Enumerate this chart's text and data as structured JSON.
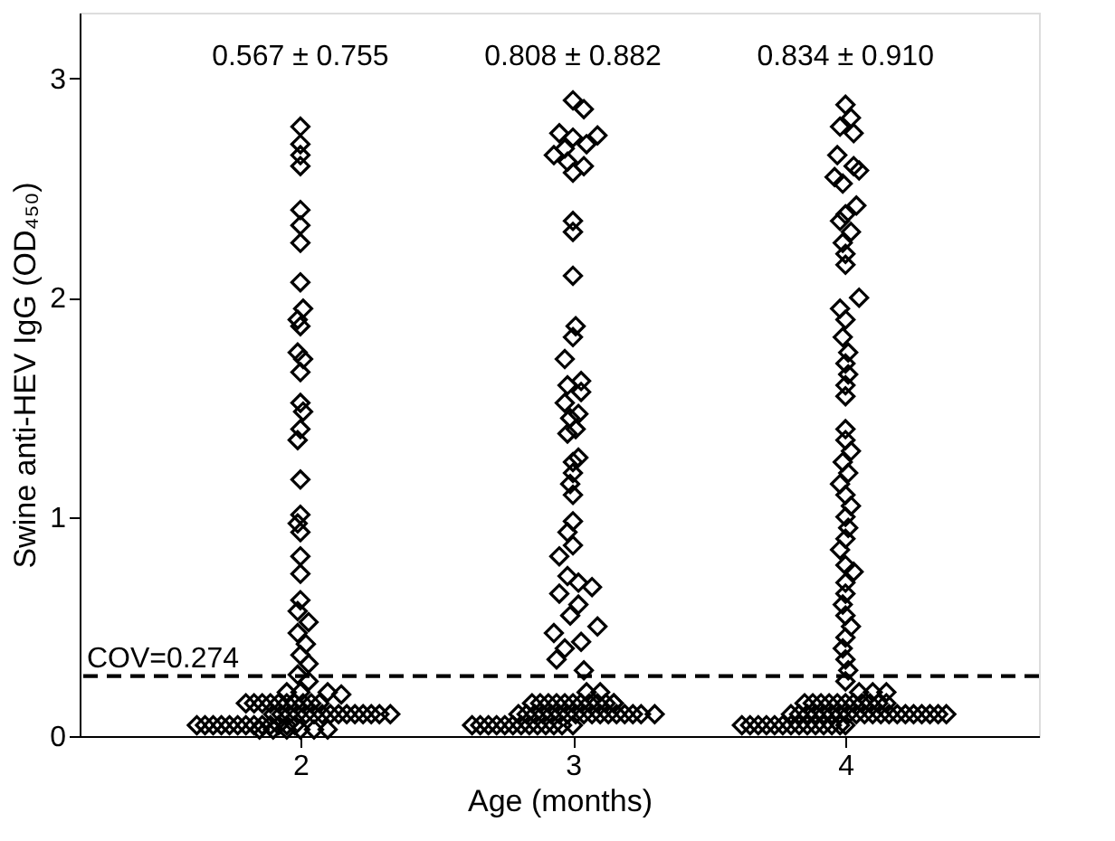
{
  "chart_data": {
    "type": "scatter",
    "xlabel": "Age (months)",
    "ylabel": "Swine anti-HEV IgG (OD₄₅₀)",
    "xlim": [
      1.19,
      4.71
    ],
    "xticks": [
      2,
      3,
      4
    ],
    "ylim": [
      0,
      3.3
    ],
    "yticks": [
      0,
      1,
      2,
      3
    ],
    "grid": false,
    "marker": "diamond",
    "annotations": [
      "0.567 ± 0.755",
      "0.808 ± 0.882",
      "0.834 ± 0.910"
    ],
    "ref_lines": [
      {
        "axis": "y",
        "value": 0.274,
        "label": "COV=0.274",
        "color": "#000000",
        "line_style": "dashed"
      }
    ],
    "series": [
      {
        "color": "#000000",
        "x": [
          2.0,
          2.0,
          2.0,
          2.0,
          2.0,
          2.0,
          2.0,
          2.0,
          2.01,
          1.99,
          2.0,
          1.99,
          2.01,
          2.0,
          2.0,
          2.01,
          2.0,
          1.99,
          2.0,
          2.0,
          1.99,
          2.0,
          2.0,
          2.0,
          2.0,
          1.99,
          2.03,
          1.99,
          2.02,
          2.0,
          2.03,
          1.99,
          2.03,
          2.1,
          2.15,
          1.62,
          1.65,
          1.68,
          1.71,
          1.74,
          1.77,
          1.8,
          1.83,
          1.86,
          1.89,
          1.92,
          1.95,
          1.98,
          1.9,
          1.93,
          1.96,
          1.99,
          2.02,
          2.05,
          2.08,
          2.11,
          2.14,
          2.17,
          2.2,
          2.23,
          2.26,
          2.29,
          2.33,
          1.8,
          1.83,
          1.86,
          1.89,
          1.92,
          1.95,
          1.98,
          2.01,
          2.04,
          2.07,
          1.85,
          1.9,
          1.95,
          2.0,
          2.05,
          2.1,
          1.95,
          2.0
        ],
        "values": [
          2.78,
          2.7,
          2.65,
          2.6,
          2.4,
          2.33,
          2.25,
          2.07,
          1.95,
          1.9,
          1.87,
          1.75,
          1.72,
          1.66,
          1.52,
          1.48,
          1.4,
          1.35,
          1.17,
          1.01,
          0.97,
          0.93,
          0.82,
          0.74,
          0.62,
          0.57,
          0.52,
          0.47,
          0.42,
          0.37,
          0.33,
          0.28,
          0.25,
          0.2,
          0.19,
          0.05,
          0.05,
          0.05,
          0.05,
          0.05,
          0.05,
          0.05,
          0.05,
          0.05,
          0.05,
          0.05,
          0.05,
          0.05,
          0.1,
          0.1,
          0.1,
          0.1,
          0.1,
          0.1,
          0.1,
          0.1,
          0.1,
          0.1,
          0.1,
          0.1,
          0.1,
          0.1,
          0.1,
          0.15,
          0.15,
          0.15,
          0.15,
          0.15,
          0.15,
          0.15,
          0.15,
          0.15,
          0.15,
          0.03,
          0.03,
          0.03,
          0.03,
          0.03,
          0.03,
          0.2,
          0.2
        ]
      },
      {
        "color": "#000000",
        "x": [
          3.0,
          3.04,
          2.95,
          3.0,
          3.05,
          2.97,
          3.09,
          2.93,
          2.98,
          3.04,
          3.0,
          3.0,
          3.0,
          3.0,
          3.01,
          3.0,
          2.97,
          3.03,
          2.98,
          3.03,
          2.97,
          3.02,
          2.99,
          3.01,
          2.98,
          3.02,
          3.0,
          3.0,
          2.99,
          3.0,
          3.0,
          2.98,
          3.0,
          2.95,
          2.98,
          3.02,
          3.07,
          2.95,
          3.02,
          2.99,
          3.09,
          2.93,
          3.03,
          2.97,
          2.94,
          3.04,
          2.63,
          2.66,
          2.69,
          2.72,
          2.75,
          2.78,
          2.81,
          2.84,
          2.87,
          2.9,
          2.93,
          2.96,
          3.0,
          2.8,
          2.83,
          2.86,
          2.89,
          2.92,
          2.95,
          2.98,
          3.01,
          3.04,
          3.07,
          3.1,
          3.13,
          3.16,
          3.19,
          3.22,
          3.25,
          3.3,
          2.85,
          2.88,
          2.91,
          2.94,
          2.97,
          3.0,
          3.03,
          3.06,
          3.09,
          3.12,
          3.15,
          3.05,
          3.1,
          3.15
        ],
        "values": [
          2.9,
          2.86,
          2.75,
          2.73,
          2.7,
          2.68,
          2.74,
          2.65,
          2.62,
          2.6,
          2.57,
          2.35,
          2.3,
          2.1,
          1.87,
          1.82,
          1.72,
          1.62,
          1.6,
          1.57,
          1.52,
          1.47,
          1.45,
          1.4,
          1.38,
          1.27,
          1.25,
          1.2,
          1.15,
          1.1,
          0.98,
          0.93,
          0.87,
          0.82,
          0.73,
          0.7,
          0.68,
          0.65,
          0.6,
          0.55,
          0.5,
          0.47,
          0.43,
          0.4,
          0.35,
          0.3,
          0.05,
          0.05,
          0.05,
          0.05,
          0.05,
          0.05,
          0.05,
          0.05,
          0.05,
          0.05,
          0.05,
          0.05,
          0.05,
          0.1,
          0.1,
          0.1,
          0.1,
          0.1,
          0.1,
          0.1,
          0.1,
          0.1,
          0.1,
          0.1,
          0.1,
          0.1,
          0.1,
          0.1,
          0.1,
          0.1,
          0.15,
          0.15,
          0.15,
          0.15,
          0.15,
          0.15,
          0.15,
          0.15,
          0.15,
          0.15,
          0.15,
          0.2,
          0.2,
          0.15
        ]
      },
      {
        "color": "#000000",
        "x": [
          4.0,
          4.02,
          3.98,
          4.03,
          3.97,
          4.03,
          4.05,
          3.96,
          3.99,
          4.04,
          4.0,
          3.98,
          4.02,
          3.99,
          4.0,
          4.0,
          4.05,
          3.98,
          4.0,
          3.99,
          4.01,
          4.0,
          4.01,
          4.0,
          4.0,
          4.0,
          4.0,
          4.02,
          3.99,
          4.01,
          3.98,
          4.0,
          4.02,
          4.0,
          4.01,
          4.0,
          3.98,
          4.0,
          4.03,
          4.0,
          4.0,
          3.99,
          4.0,
          4.02,
          4.0,
          3.99,
          4.0,
          4.01,
          4.0,
          3.62,
          3.65,
          3.68,
          3.71,
          3.74,
          3.77,
          3.8,
          3.83,
          3.86,
          3.89,
          3.92,
          3.95,
          3.98,
          4.0,
          3.8,
          3.83,
          3.86,
          3.89,
          3.92,
          3.95,
          3.98,
          4.01,
          4.04,
          4.07,
          4.1,
          4.13,
          4.16,
          4.19,
          4.22,
          4.25,
          4.28,
          4.31,
          4.34,
          4.37,
          3.85,
          3.88,
          3.91,
          3.94,
          3.97,
          4.0,
          4.03,
          4.06,
          4.09,
          4.12,
          4.15,
          4.05,
          4.1,
          4.15
        ],
        "values": [
          2.88,
          2.82,
          2.78,
          2.75,
          2.65,
          2.6,
          2.58,
          2.55,
          2.52,
          2.42,
          2.38,
          2.35,
          2.3,
          2.25,
          2.2,
          2.15,
          2.0,
          1.95,
          1.9,
          1.82,
          1.75,
          1.7,
          1.65,
          1.6,
          1.55,
          1.4,
          1.35,
          1.3,
          1.25,
          1.2,
          1.15,
          1.1,
          1.05,
          1.0,
          0.95,
          0.9,
          0.85,
          0.78,
          0.75,
          0.7,
          0.65,
          0.6,
          0.55,
          0.5,
          0.45,
          0.4,
          0.35,
          0.3,
          0.25,
          0.05,
          0.05,
          0.05,
          0.05,
          0.05,
          0.05,
          0.05,
          0.05,
          0.05,
          0.05,
          0.05,
          0.05,
          0.05,
          0.05,
          0.1,
          0.1,
          0.1,
          0.1,
          0.1,
          0.1,
          0.1,
          0.1,
          0.1,
          0.1,
          0.1,
          0.1,
          0.1,
          0.1,
          0.1,
          0.1,
          0.1,
          0.1,
          0.1,
          0.1,
          0.15,
          0.15,
          0.15,
          0.15,
          0.15,
          0.15,
          0.15,
          0.15,
          0.15,
          0.15,
          0.15,
          0.2,
          0.2,
          0.2
        ]
      }
    ]
  }
}
